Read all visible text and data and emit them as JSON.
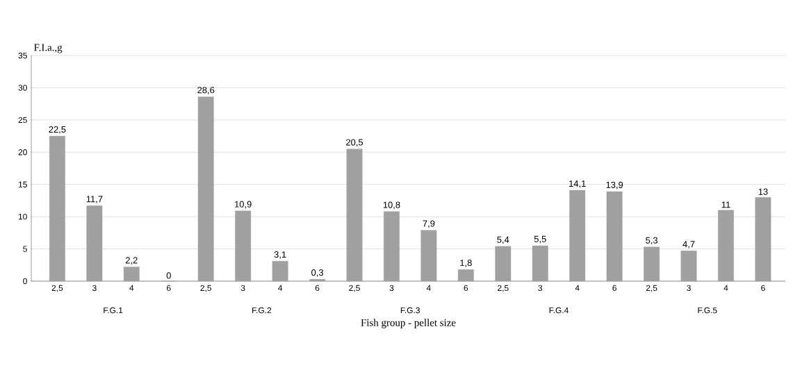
{
  "chart_data": {
    "type": "bar",
    "ylabel": "F.I.a.,g",
    "xlabel": "Fish group - pellet size",
    "categories": [
      "2,5",
      "3",
      "4",
      "6",
      "2,5",
      "3",
      "4",
      "6",
      "2,5",
      "3",
      "4",
      "6",
      "2,5",
      "3",
      "4",
      "6",
      "2,5",
      "3",
      "4",
      "6"
    ],
    "values": [
      22.5,
      11.7,
      2.2,
      0,
      28.6,
      10.9,
      3.1,
      0.3,
      20.5,
      10.8,
      7.9,
      1.8,
      5.4,
      5.5,
      14.1,
      13.9,
      5.3,
      4.7,
      11,
      13
    ],
    "value_labels": [
      "22,5",
      "11,7",
      "2,2",
      "0",
      "28,6",
      "10,9",
      "3,1",
      "0,3",
      "20,5",
      "10,8",
      "7,9",
      "1,8",
      "5,4",
      "5,5",
      "14,1",
      "13,9",
      "5,3",
      "4,7",
      "11",
      "13"
    ],
    "color": "#a0a0a0",
    "annotations": [
      "F.G.1",
      "F.G.2",
      "F.G.3",
      "F.G.4",
      "F.G.5"
    ],
    "ylim": [
      0,
      35
    ],
    "yticks": [
      0,
      5,
      10,
      15,
      20,
      25,
      30,
      35
    ],
    "grid": "y"
  }
}
